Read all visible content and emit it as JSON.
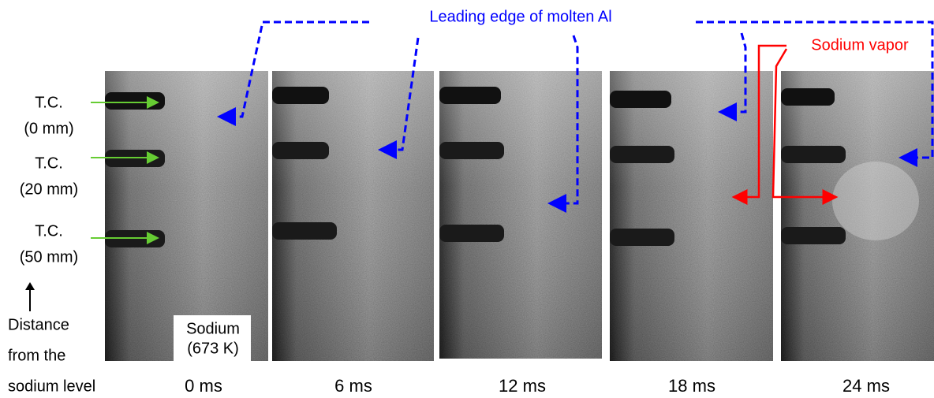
{
  "annotations": {
    "leading_edge": "Leading edge of molten Al",
    "sodium_vapor": "Sodium vapor"
  },
  "thermocouples": [
    {
      "label": "T.C.",
      "depth": "(0 mm)"
    },
    {
      "label": "T.C.",
      "depth": "(20 mm)"
    },
    {
      "label": "T.C.",
      "depth": "(50 mm)"
    }
  ],
  "axis_note": [
    "Distance",
    "from the",
    "sodium level"
  ],
  "medium": {
    "name": "Sodium",
    "temperature": "(673 K)"
  },
  "frames": [
    "0 ms",
    "6 ms",
    "12 ms",
    "18 ms",
    "24 ms"
  ]
}
